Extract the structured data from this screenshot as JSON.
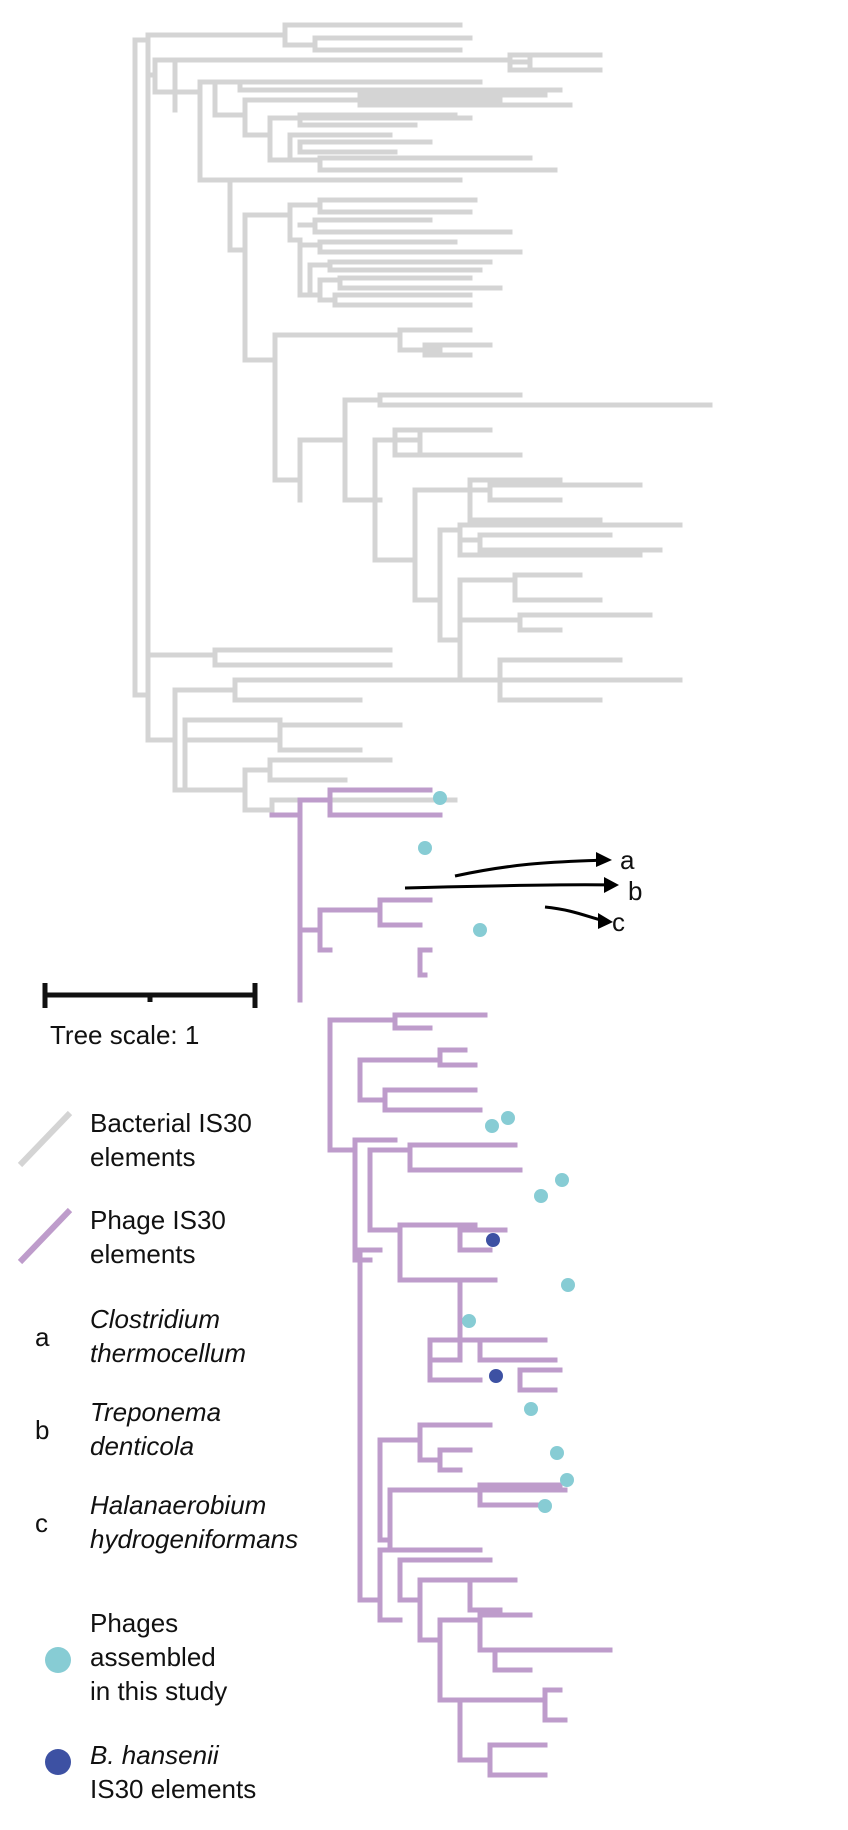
{
  "colors": {
    "bacterial": "#d4d4d4",
    "phage": "#be9ccb",
    "assembled_phage_dot": "#87ccd4",
    "b_hansenii_dot": "#3d51a3",
    "arrows": "#000000"
  },
  "arrow_labels": [
    "a",
    "b",
    "c"
  ],
  "scale_bar": {
    "label": "Tree scale: 1"
  },
  "legend": {
    "bacterial": {
      "line1": "Bacterial IS30",
      "line2": "elements",
      "icon": "grey-line"
    },
    "phage": {
      "line1": "Phage IS30",
      "line2": "elements",
      "icon": "purple-line"
    },
    "taxa": [
      {
        "letter": "a",
        "line1": "Clostridium",
        "line2": "thermocellum"
      },
      {
        "letter": "b",
        "line1": "Treponema",
        "line2": "denticola"
      },
      {
        "letter": "c",
        "line1": "Halanaerobium",
        "line2": "hydrogeniformans"
      }
    ],
    "assembled": {
      "line1": "Phages",
      "line2": "assembled",
      "line3": "in this study"
    },
    "hansenii": {
      "line1": "B. hansenii",
      "line2": "IS30 elements"
    }
  }
}
